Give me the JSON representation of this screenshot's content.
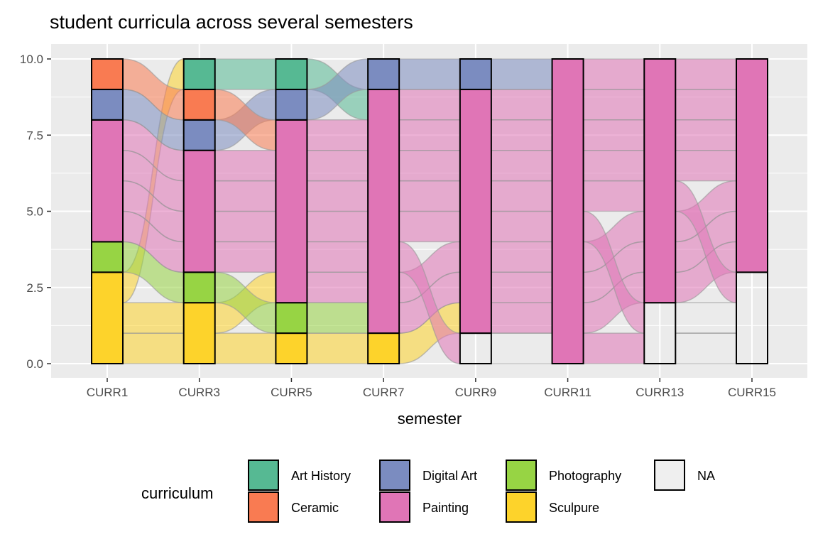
{
  "chart_data": {
    "type": "alluvial",
    "title": "student curricula across several semesters",
    "xlabel": "semester",
    "ylabel": "",
    "ylim": [
      0,
      10
    ],
    "y_ticks": [
      "0.0",
      "2.5",
      "5.0",
      "7.5",
      "10.0"
    ],
    "y_tick_values": [
      0,
      2.5,
      5,
      7.5,
      10
    ],
    "categories": [
      "CURR1",
      "CURR3",
      "CURR5",
      "CURR7",
      "CURR9",
      "CURR11",
      "CURR13",
      "CURR15"
    ],
    "legend": {
      "title": "curriculum",
      "placement": "bottom",
      "entries": [
        {
          "name": "Art History",
          "color": "#56B993"
        },
        {
          "name": "Ceramic",
          "color": "#F97B52"
        },
        {
          "name": "Digital Art",
          "color": "#7B8CC0"
        },
        {
          "name": "Painting",
          "color": "#E075B6"
        },
        {
          "name": "Photography",
          "color": "#97D444"
        },
        {
          "name": "Sculpure",
          "color": "#FDD32B"
        },
        {
          "name": "NA",
          "color": "#EFEFEF"
        }
      ]
    },
    "stack_order_bottom_to_top": [
      "NA",
      "Sculpure",
      "Photography",
      "Painting",
      "Digital Art",
      "Ceramic",
      "Art History"
    ],
    "students": [
      [
        "Sculpure",
        "Sculpure",
        "Sculpure",
        "Sculpure",
        "Painting",
        "Painting",
        "Painting",
        "Painting"
      ],
      [
        "Sculpure",
        "Sculpure",
        "Painting",
        "Painting",
        "Painting",
        "Painting",
        "Painting",
        "Painting"
      ],
      [
        "Sculpure",
        "Art History",
        "Art History",
        "Painting",
        "Painting",
        "Painting",
        "Painting",
        "Painting"
      ],
      [
        "Photography",
        "Photography",
        "Photography",
        "Painting",
        "Painting",
        "Painting",
        "Painting",
        "Painting"
      ],
      [
        "Painting",
        "Painting",
        "Painting",
        "Painting",
        "NA",
        "Painting",
        "NA",
        "NA"
      ],
      [
        "Painting",
        "Painting",
        "Painting",
        "Painting",
        "Painting",
        "Painting",
        "NA",
        "NA"
      ],
      [
        "Painting",
        "Painting",
        "Painting",
        "Painting",
        "Painting",
        "Painting",
        "Painting",
        "NA"
      ],
      [
        "Painting",
        "Painting",
        "Painting",
        "Painting",
        "Painting",
        "Painting",
        "Painting",
        "Painting"
      ],
      [
        "Digital Art",
        "Digital Art",
        "Digital Art",
        "Digital Art",
        "Digital Art",
        "Painting",
        "Painting",
        "Painting"
      ],
      [
        "Ceramic",
        "Ceramic",
        "Painting",
        "Painting",
        "Painting",
        "Painting",
        "Painting",
        "Painting"
      ]
    ]
  }
}
